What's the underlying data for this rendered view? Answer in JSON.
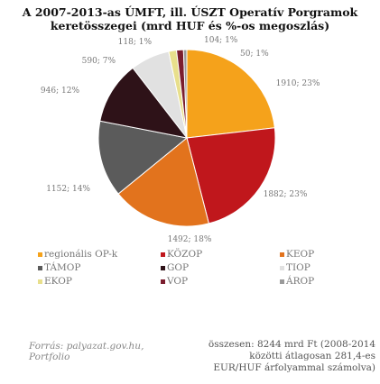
{
  "title_lines": [
    "A 2007-2013-as ÚMFT, ill. ÚSZT Operatív Porgramok",
    "keretösszegei (mrd HUF és %-os megoszlás)"
  ],
  "chart_data": {
    "type": "pie",
    "title": "A 2007-2013-as ÚMFT, ill. ÚSZT Operatív Porgramok keretösszegei (mrd HUF és %-os megoszlás)",
    "legend_position": "bottom",
    "slices": [
      {
        "name": "regionális OP-k",
        "value": 1910,
        "label": "1910; 23%",
        "color": "#f5a21b"
      },
      {
        "name": "KÖZOP",
        "value": 1882,
        "label": "1882; 23%",
        "color": "#c0171c"
      },
      {
        "name": "KEOP",
        "value": 1492,
        "label": "1492; 18%",
        "color": "#e2731d"
      },
      {
        "name": "TÁMOP",
        "value": 1152,
        "label": "1152; 14%",
        "color": "#5b5b5b"
      },
      {
        "name": "GOP",
        "value": 946,
        "label": "946; 12%",
        "color": "#2e1218"
      },
      {
        "name": "TIOP",
        "value": 590,
        "label": "590; 7%",
        "color": "#e1e1e1"
      },
      {
        "name": "EKOP",
        "value": 118,
        "label": "118; 1%",
        "color": "#e8df8c"
      },
      {
        "name": "VOP",
        "value": 104,
        "label": "104; 1%",
        "color": "#7b1d2e"
      },
      {
        "name": "ÁROP",
        "value": 50,
        "label": "50; 1%",
        "color": "#9a9a9a"
      }
    ]
  },
  "source_text": "Forrás: palyazat.gov.hu, Portfolio",
  "note_lines": [
    "összesen: 8244 mrd Ft (2008-2014",
    "közötti átlagosan 281,4-es",
    "EUR/HUF árfolyammal számolva)"
  ]
}
